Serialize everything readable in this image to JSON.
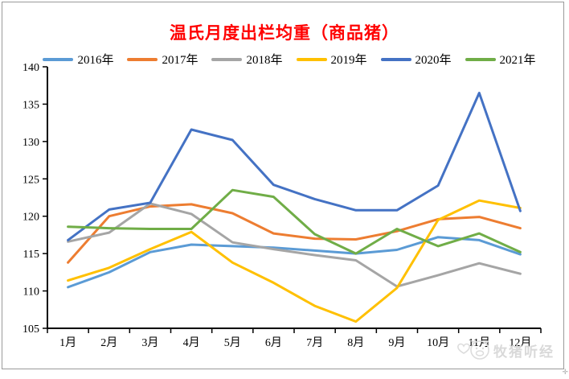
{
  "title": "温氏月度出栏均重（商品猪）",
  "title_color": "#ff0000",
  "watermark": {
    "text": "牧猪听经"
  },
  "corner_mark": "✛",
  "chart_data": {
    "type": "line",
    "title": "温氏月度出栏均重（商品猪）",
    "xlabel": "",
    "ylabel": "",
    "categories": [
      "1月",
      "2月",
      "3月",
      "4月",
      "5月",
      "6月",
      "7月",
      "8月",
      "9月",
      "10月",
      "11月",
      "12月"
    ],
    "series": [
      {
        "name": "2016年",
        "color": "#5B9BD5",
        "values": [
          110.5,
          112.5,
          115.2,
          116.2,
          116.0,
          115.8,
          115.4,
          115.0,
          115.5,
          117.2,
          116.8,
          114.9
        ]
      },
      {
        "name": "2017年",
        "color": "#ED7D31",
        "values": [
          113.8,
          120.0,
          121.3,
          121.6,
          120.4,
          117.7,
          117.0,
          116.9,
          118.0,
          119.6,
          119.9,
          118.4
        ]
      },
      {
        "name": "2018年",
        "color": "#A5A5A5",
        "values": [
          116.6,
          117.8,
          121.7,
          120.3,
          116.5,
          115.6,
          114.8,
          114.1,
          110.6,
          112.1,
          113.7,
          112.3
        ]
      },
      {
        "name": "2019年",
        "color": "#FFC000",
        "values": [
          111.4,
          113.1,
          115.6,
          117.9,
          113.8,
          111.1,
          108.0,
          105.9,
          110.4,
          119.5,
          122.1,
          121.1
        ]
      },
      {
        "name": "2020年",
        "color": "#4472C4",
        "values": [
          116.8,
          120.9,
          121.8,
          131.6,
          130.2,
          124.2,
          122.3,
          120.8,
          120.8,
          124.1,
          136.5,
          120.7
        ]
      },
      {
        "name": "2021年",
        "color": "#70AD47",
        "values": [
          118.6,
          118.4,
          118.3,
          118.3,
          123.5,
          122.6,
          117.6,
          115.0,
          118.3,
          116.0,
          117.7,
          115.2
        ]
      }
    ],
    "ylim": [
      105,
      140
    ],
    "yticks": [
      140,
      135,
      130,
      125,
      120,
      115,
      110,
      105
    ],
    "grid": false,
    "legend_position": "top"
  }
}
